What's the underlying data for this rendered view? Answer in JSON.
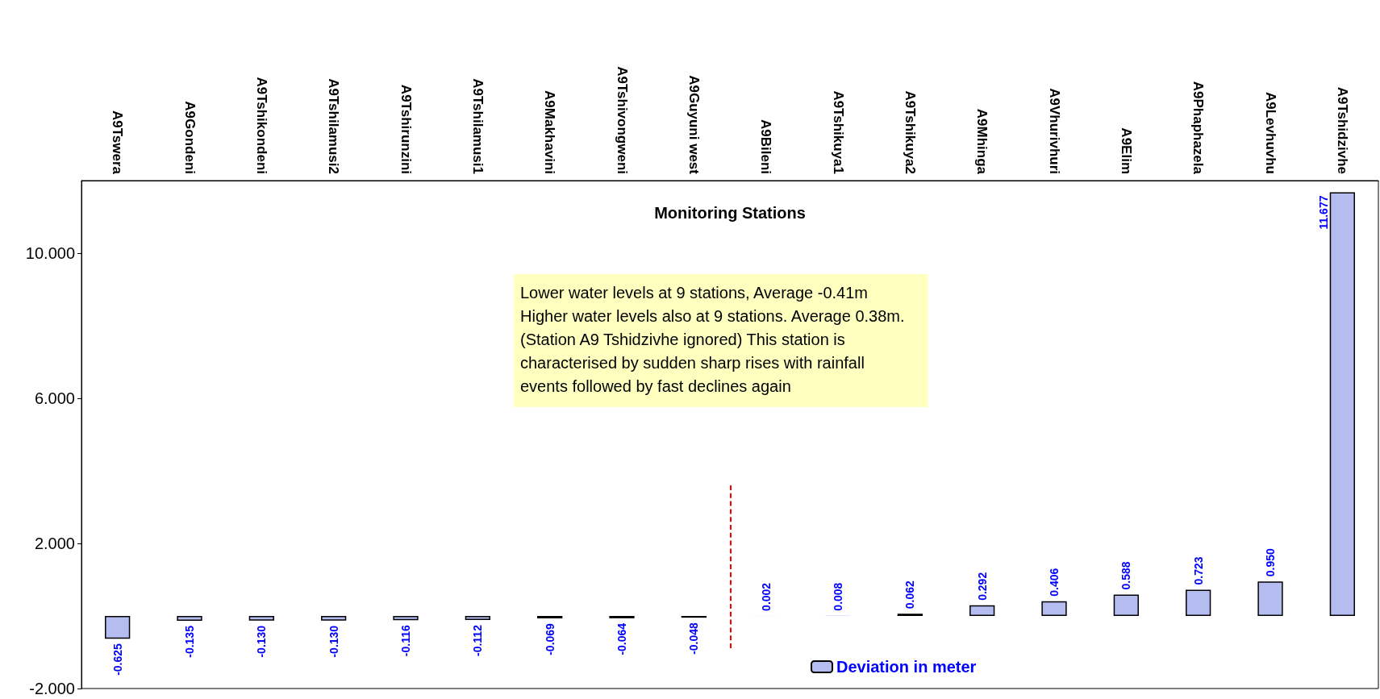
{
  "chart_data": {
    "type": "bar",
    "xlabel": "Monitoring Stations",
    "categories": [
      "A9Tswera",
      "A9Gondeni",
      "A9Tshikondeni",
      "A9Tshilamusi2",
      "A9Tshirunzini",
      "A9Tshilamusi1",
      "A9Makhavini",
      "A9Tshivongweni",
      "A9Guyuni west",
      "A9Bileni",
      "A9Tshikuya1",
      "A9Tshikuya2",
      "A9Mhinga",
      "A9Vhurivhuri",
      "A9Elim",
      "A9Phaphazela",
      "A9Levhuvhu",
      "A9Tshidzivhe"
    ],
    "series": [
      {
        "name": "Deviation in meter",
        "color": "#b4bcf0",
        "values": [
          -0.625,
          -0.135,
          -0.13,
          -0.13,
          -0.116,
          -0.112,
          -0.069,
          -0.064,
          -0.048,
          0.002,
          0.008,
          0.062,
          0.292,
          0.406,
          0.588,
          0.723,
          0.95,
          11.677
        ],
        "value_labels": [
          "-0.625",
          "-0.135",
          "-0.130",
          "-0.130",
          "-0.116",
          "-0.112",
          "-0.069",
          "-0.064",
          "-0.048",
          "0.002",
          "0.008",
          "0.062",
          "0.292",
          "0.406",
          "0.588",
          "0.723",
          "0.950",
          "11.677"
        ]
      }
    ],
    "ylim": [
      -2,
      12
    ],
    "yticks": [
      {
        "value": -2,
        "label": "-2.000"
      },
      {
        "value": 2,
        "label": "2.000"
      },
      {
        "value": 6,
        "label": "6.000"
      },
      {
        "value": 10,
        "label": "10.000"
      }
    ],
    "annotations": [
      "Lower water levels at 9 stations, Average -0.41m\nHigher water levels also at 9 stations. Average 0.38m.\n(Station A9 Tshidzivhe ignored) This station is\ncharacterised by sudden sharp rises with rainfall\nevents followed by fast declines again"
    ],
    "legend": "bottom",
    "grid": false
  }
}
